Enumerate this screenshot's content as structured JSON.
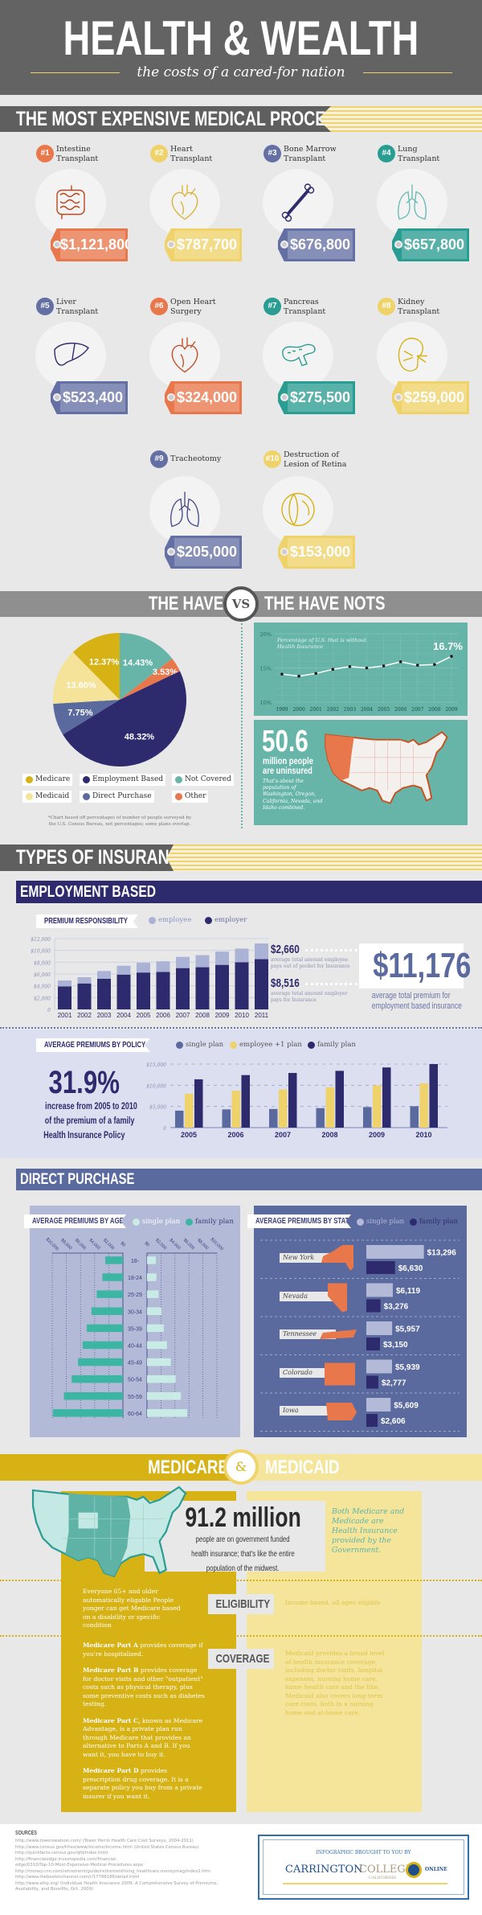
{
  "header": {
    "title": "HEALTH & WEALTH",
    "subtitle": "the costs of a cared-for nation"
  },
  "procedures": {
    "title": "THE MOST EXPENSIVE MEDICAL PROCEDURES",
    "items": [
      {
        "rank": "#1",
        "line1": "Intestine",
        "line2": "Transplant",
        "price": "$1,121,800",
        "color": "#e8774b",
        "icon": "intestine-icon",
        "icon_color": "#b8461e"
      },
      {
        "rank": "#2",
        "line1": "Heart",
        "line2": "Transplant",
        "price": "$787,700",
        "color": "#efd36a",
        "icon": "heart-icon",
        "icon_color": "#d9b43a"
      },
      {
        "rank": "#3",
        "line1": "Bone Marrow",
        "line2": "Transplant",
        "price": "$676,800",
        "color": "#6470a3",
        "icon": "bone-icon",
        "icon_color": "#2d2b6e"
      },
      {
        "rank": "#4",
        "line1": "Lung",
        "line2": "Transplant",
        "price": "$657,800",
        "color": "#2a9d93",
        "icon": "lungs-icon",
        "icon_color": "#6cbcb6"
      },
      {
        "rank": "#5",
        "line1": "Liver",
        "line2": "Transplant",
        "price": "$523,400",
        "color": "#6470a3",
        "icon": "liver-icon",
        "icon_color": "#2d2b6e"
      },
      {
        "rank": "#6",
        "line1": "Open Heart",
        "line2": "Surgery",
        "price": "$324,000",
        "color": "#e8774b",
        "icon": "heart-icon",
        "icon_color": "#c4512a"
      },
      {
        "rank": "#7",
        "line1": "Pancreas",
        "line2": "Transplant",
        "price": "$275,500",
        "color": "#2a9d93",
        "icon": "pancreas-icon",
        "icon_color": "#2a9d93"
      },
      {
        "rank": "#8",
        "line1": "Kidney",
        "line2": "Transplant",
        "price": "$259,000",
        "color": "#efd36a",
        "icon": "kidney-icon",
        "icon_color": "#d6b215"
      },
      {
        "rank": "#9",
        "line1": "Tracheotomy",
        "line2": "",
        "price": "$205,000",
        "color": "#6470a3",
        "icon": "lungs-icon",
        "icon_color": "#4a4f8a"
      },
      {
        "rank": "#10",
        "line1": "Destruction of",
        "line2": "Lesion of Retina",
        "price": "$153,000",
        "color": "#efd36a",
        "icon": "eye-icon",
        "icon_color": "#d6b215"
      }
    ]
  },
  "haves": {
    "left": "THE HAVES",
    "vs": "VS",
    "right": "THE HAVE NOTS",
    "note_line1": "*Chart based off percentages of number of people surveyed by",
    "note_line2": "the U.S. Census Bureau, not percentages; some plans overlap.",
    "uninsured": {
      "value": "50.6",
      "line1": "million people",
      "line2": "are uninsured",
      "desc": "That's about the population of Washington, Oregon, California, Nevada, and Idaho combined."
    }
  },
  "insurance": {
    "title": "TYPES OF INSURANCE",
    "employment": {
      "title": "EMPLOYMENT BASED",
      "employee_value": "$2,660",
      "employee_desc1": "average total amount employee",
      "employee_desc2": "pays out of pocket for Insurance",
      "employer_value": "$8,516",
      "employer_desc1": "average total amount employer",
      "employer_desc2": "pays for Insurance",
      "total_value": "$11,176",
      "total_desc1": "average total premium for",
      "total_desc2": "employment based insurance",
      "stat_value": "31.9%",
      "stat_line1": "increase from 2005 to 2010",
      "stat_line2": "of the premium of a family",
      "stat_line3": "Health Insurance Policy"
    },
    "direct": {
      "title": "DIRECT PURCHASE"
    }
  },
  "medicare": {
    "left": "MEDICARE",
    "amp": "&",
    "right": "MEDICAID",
    "stat_value": "91.2 million",
    "stat_line1": "people are on government funded",
    "stat_line2": "health insurance; that's like the entire",
    "stat_line3": "population of the midwest.",
    "both": "Both Medicare and Medicade are Health Insurance provided by the Government.",
    "eligibility_label": "ELIGIBILITY",
    "eligibility_medicare": "Everyone 65+ and older automatically eligable People yonger can get Medicare based on a disability or specific condition",
    "eligibility_medicaid": "Income based, all ages eligible",
    "coverage_label": "COVERAGE",
    "parts": [
      {
        "name": "Medicare Part A",
        "text": " provides coverage if you're hospitalized."
      },
      {
        "name": "Medicare Part B",
        "text": " provides coverage for doctor visits and other \"outpatient\" costs such as physical therapy, plus some preventive costs such as diabetes testing."
      },
      {
        "name": "Medicare Part C,",
        "text": " known as Medicare Advantage, is a private plan run through Medicare that provides an alternative to Parts A and B. If you want it, you have to buy it."
      },
      {
        "name": "Medicare Part D",
        "text": " provides prescription drug coverage. It is a separate policy you buy from a private insurer if you want it."
      }
    ],
    "coverage_medicaid": "Medicaid provides a broad level of health insurance coverage, including doctor visits, hospital expenses, nursing home care, home health care and the like. Medicaid also covers long-term care costs, both in a nursing home and at-home care."
  },
  "footer": {
    "sources_title": "SOURCES",
    "sources": [
      "http://www.towerswatson.com/ (Tower Perrin Health Care Cost Surveys, 2004-2011)",
      "http://www.census.gov/hhes/www/income/income.html (United States Census Bureau)",
      "http://quickfacts.census.gov/qfd/index.html",
      "http://financialedge.investopedia.com/financial-",
      "edge/0310/Top-10-Most-Expensive-Medical-Procedures.aspx",
      "http://money.cnn.com/retirement/guide/retirementliving_healthcare.moneymag/index2.htm",
      "http://www.thebostonchannel.com/r/17788186/detail.html",
      "http://www.ahip.org/ (Individual Health Insurance 2009: A Comprehensive Survey of Premiums,",
      "Availability, and Benefits, Oct. 2009)"
    ],
    "sponsor_intro": "INFOGRAPHIC BROUGHT TO YOU BY",
    "logo_text1": "CARRINGTON",
    "logo_text2": "COLLEGE",
    "logo_sub": "CALIFORNIA",
    "logo_online": "ONLINE"
  },
  "chart_data": [
    {
      "type": "pie",
      "slices": [
        {
          "label": "Not Covered",
          "value": 14.43,
          "color": "#66b5a8"
        },
        {
          "label": "Other",
          "value": 3.53,
          "color": "#e8774b"
        },
        {
          "label": "Employment Based",
          "value": 48.32,
          "color": "#2e2a6e"
        },
        {
          "label": "Direct Purchase",
          "value": 7.75,
          "color": "#5b6a9e"
        },
        {
          "label": "Medicaid",
          "value": 13.6,
          "color": "#f5e39a"
        },
        {
          "label": "Medicare",
          "value": 12.37,
          "color": "#d6b215"
        }
      ],
      "value_labels": [
        "14.43%",
        "3.53%",
        "48.32%",
        "7.75%",
        "13.60%",
        "12.37%"
      ],
      "legend": [
        {
          "label": "Medicare",
          "color": "#d6b215"
        },
        {
          "label": "Employment Based",
          "color": "#2e2a6e"
        },
        {
          "label": "Not Covered",
          "color": "#66b5a8"
        },
        {
          "label": "Medicaid",
          "color": "#f5e39a"
        },
        {
          "label": "Direct Purchase",
          "color": "#5b6a9e"
        },
        {
          "label": "Other",
          "color": "#e8774b"
        }
      ],
      "legend_placement": "bottom"
    },
    {
      "type": "line",
      "title_line1": "Percentage of U.S. that is without",
      "title_line2": "Health Insurance",
      "x": [
        1999,
        2000,
        2001,
        2002,
        2003,
        2004,
        2005,
        2006,
        2007,
        2008,
        2009
      ],
      "y": [
        14.1,
        13.8,
        14.2,
        14.8,
        15.2,
        15.0,
        15.3,
        15.9,
        15.4,
        15.5,
        16.7
      ],
      "ylim": [
        10,
        20
      ],
      "yticks": [
        10,
        15,
        20
      ],
      "ytick_labels": [
        "10%",
        "15%",
        "20%"
      ],
      "annotation": "16.7%",
      "grid": true
    },
    {
      "type": "bar",
      "stacked": true,
      "title": "PREMIUM RESPONSIBILITY",
      "categories": [
        "2001",
        "2002",
        "2003",
        "2004",
        "2005",
        "2006",
        "2007",
        "2008",
        "2009",
        "2010",
        "2011"
      ],
      "series": [
        {
          "name": "employer",
          "values": [
            3900,
            4400,
            5200,
            5900,
            6250,
            6350,
            7000,
            7150,
            7550,
            8000,
            8516
          ],
          "color": "#2e2a6e"
        },
        {
          "name": "employee",
          "values": [
            1000,
            1050,
            1300,
            1500,
            1650,
            1800,
            1900,
            2050,
            2250,
            2300,
            2660
          ],
          "color": "#aab3d6"
        }
      ],
      "legend_order": [
        "employee",
        "employer"
      ],
      "ylim": [
        0,
        12000
      ],
      "yticks": [
        0,
        2000,
        4000,
        6000,
        8000,
        10000,
        12000
      ],
      "ytick_labels": [
        "0",
        "$2,000",
        "$4,000",
        "$6,000",
        "$8,000",
        "$10,000",
        "$12,000"
      ],
      "grid": true
    },
    {
      "type": "bar",
      "title": "AVERAGE PREMIUMS BY POLICY",
      "categories": [
        "2005",
        "2006",
        "2007",
        "2008",
        "2009",
        "2010"
      ],
      "series": [
        {
          "name": "single plan",
          "values": [
            4000,
            4300,
            4400,
            4600,
            4850,
            5050
          ],
          "color": "#5b6a9e"
        },
        {
          "name": "employee +1 plan",
          "values": [
            8000,
            8700,
            9000,
            9500,
            9950,
            10450
          ],
          "color": "#efd36a"
        },
        {
          "name": "family plan",
          "values": [
            11400,
            12400,
            12900,
            13400,
            14200,
            15000
          ],
          "color": "#2e2a6e"
        }
      ],
      "ylim": [
        0,
        15000
      ],
      "yticks": [
        0,
        5000,
        10000,
        15000
      ],
      "ytick_labels": [
        "0",
        "$5,000",
        "$10,000",
        "$15,000"
      ],
      "grid": true
    },
    {
      "type": "bar",
      "orientation": "horizontal",
      "title": "AVERAGE PREMIUMS BY AGE",
      "categories": [
        "18-",
        "18-24",
        "25-29",
        "30-34",
        "35-39",
        "40-44",
        "45-49",
        "50-54",
        "55-59",
        "60-64"
      ],
      "series": [
        {
          "name": "single plan",
          "values": [
            1250,
            1350,
            1650,
            2050,
            2400,
            2850,
            3400,
            4100,
            4850,
            5750
          ],
          "color": "#c9ebe6"
        },
        {
          "name": "family plan",
          "values": [
            2500,
            2900,
            3700,
            4450,
            5100,
            5700,
            6350,
            7250,
            8350,
            9900
          ],
          "color": "#3cb6a3"
        }
      ],
      "xlim": [
        0,
        10000
      ],
      "xticks": [
        0,
        2000,
        4000,
        6000,
        8000,
        10000
      ],
      "xtick_labels": [
        "$0",
        "$2,000",
        "$4,000",
        "$6,000",
        "$8,000",
        "$10,000"
      ]
    },
    {
      "type": "bar",
      "orientation": "horizontal",
      "title": "AVERAGE PREMIUMS BY STATE",
      "categories": [
        "New York",
        "Nevada",
        "Tennessee",
        "Colorado",
        "Iowa"
      ],
      "series": [
        {
          "name": "single plan",
          "values": [
            13296,
            6119,
            5957,
            5939,
            5609
          ],
          "labels": [
            "$13,296",
            "$6,119",
            "$5,957",
            "$5,939",
            "$5,609"
          ],
          "color": "#b3bad8"
        },
        {
          "name": "family plan",
          "values": [
            6630,
            3276,
            3150,
            2777,
            2606
          ],
          "labels": [
            "$6,630",
            "$3,276",
            "$3,150",
            "$2,777",
            "$2,606"
          ],
          "color": "#2e2a6e"
        }
      ]
    }
  ],
  "colors": {
    "orange": "#e8774b",
    "yellow": "#efd36a",
    "slate": "#5b6a9e",
    "teal": "#66b5a8",
    "navy": "#2e2a6e",
    "mustard": "#d6b215",
    "pale_yellow": "#f5e59a",
    "header_gray": "#636363"
  }
}
